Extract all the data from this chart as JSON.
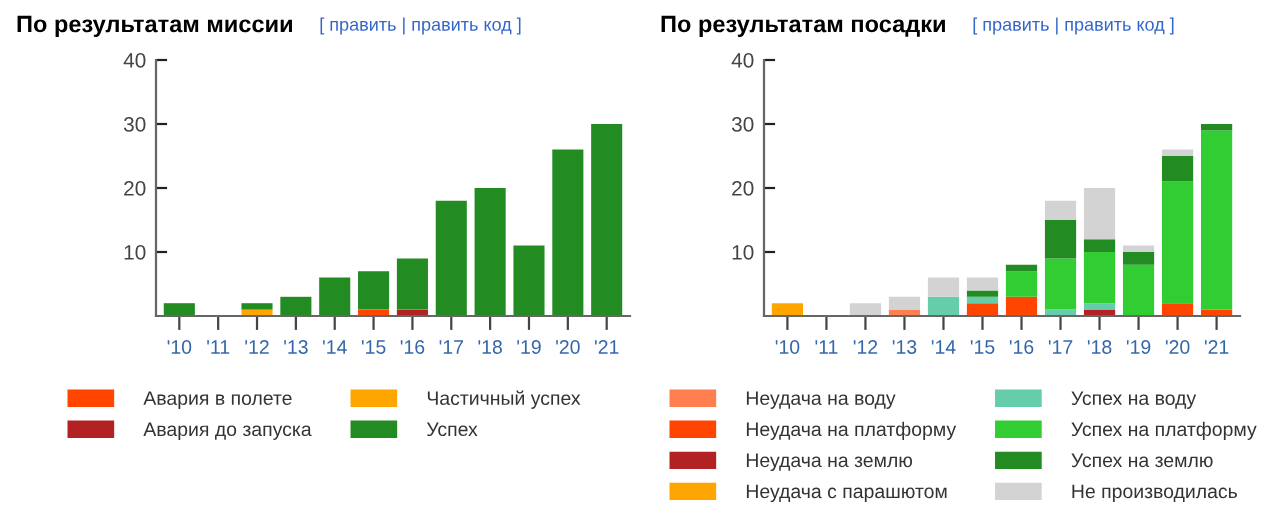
{
  "chart_data": [
    {
      "type": "bar",
      "title": "По результатам миссии",
      "annotations": [
        "[ править | править код ]"
      ],
      "stacked": true,
      "legend": "bottom",
      "ylim": [
        0,
        40
      ],
      "yticks": [
        10,
        20,
        30,
        40
      ],
      "grid": false,
      "categories": [
        "'10",
        "'11",
        "'12",
        "'13",
        "'14",
        "'15",
        "'16",
        "'17",
        "'18",
        "'19",
        "'20",
        "'21"
      ],
      "series": [
        {
          "name": "Авария в полете",
          "color": "#ff4500",
          "values": [
            0,
            0,
            0,
            0,
            0,
            1,
            0,
            0,
            0,
            0,
            0,
            0
          ]
        },
        {
          "name": "Авария до запуска",
          "color": "#b22222",
          "values": [
            0,
            0,
            0,
            0,
            0,
            0,
            1,
            0,
            0,
            0,
            0,
            0
          ]
        },
        {
          "name": "Частичный успех",
          "color": "#ffa500",
          "values": [
            0,
            0,
            1,
            0,
            0,
            0,
            0,
            0,
            0,
            0,
            0,
            0
          ]
        },
        {
          "name": "Успех",
          "color": "#228b22",
          "values": [
            2,
            0,
            1,
            3,
            6,
            6,
            8,
            18,
            20,
            11,
            26,
            30
          ]
        }
      ]
    },
    {
      "type": "bar",
      "title": "По результатам посадки",
      "annotations": [
        "[ править | править код ]"
      ],
      "stacked": true,
      "legend": "bottom",
      "ylim": [
        0,
        40
      ],
      "yticks": [
        10,
        20,
        30,
        40
      ],
      "grid": false,
      "categories": [
        "'10",
        "'11",
        "'12",
        "'13",
        "'14",
        "'15",
        "'16",
        "'17",
        "'18",
        "'19",
        "'20",
        "'21"
      ],
      "series": [
        {
          "name": "Неудача на воду",
          "color": "#ff7f50",
          "values": [
            0,
            0,
            0,
            1,
            0,
            0,
            0,
            0,
            0,
            0,
            0,
            0
          ]
        },
        {
          "name": "Неудача на платформу",
          "color": "#ff4500",
          "values": [
            0,
            0,
            0,
            0,
            0,
            2,
            3,
            0,
            0,
            0,
            2,
            1
          ]
        },
        {
          "name": "Неудача на землю",
          "color": "#b22222",
          "values": [
            0,
            0,
            0,
            0,
            0,
            0,
            0,
            0,
            1,
            0,
            0,
            0
          ]
        },
        {
          "name": "Неудача с парашютом",
          "color": "#ffa500",
          "values": [
            2,
            0,
            0,
            0,
            0,
            0,
            0,
            0,
            0,
            0,
            0,
            0
          ]
        },
        {
          "name": "Успех на воду",
          "color": "#66cdaa",
          "values": [
            0,
            0,
            0,
            0,
            3,
            1,
            0,
            1,
            1,
            0,
            0,
            0
          ]
        },
        {
          "name": "Успех на платформу",
          "color": "#32cd32",
          "values": [
            0,
            0,
            0,
            0,
            0,
            0,
            4,
            8,
            8,
            8,
            19,
            28
          ]
        },
        {
          "name": "Успех на землю",
          "color": "#228b22",
          "values": [
            0,
            0,
            0,
            0,
            0,
            1,
            1,
            6,
            2,
            2,
            4,
            1
          ]
        },
        {
          "name": "Не производилась",
          "color": "#d3d3d3",
          "values": [
            0,
            0,
            2,
            2,
            3,
            2,
            0,
            3,
            8,
            1,
            1,
            0
          ]
        }
      ]
    }
  ]
}
